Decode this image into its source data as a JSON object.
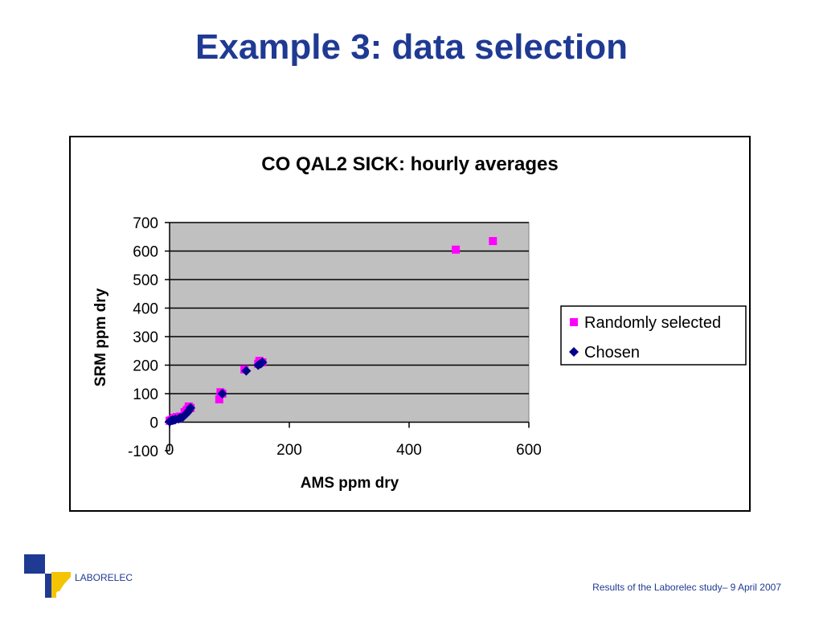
{
  "slide": {
    "title": "Example 3: data selection",
    "logo_text": "LABORELEC",
    "footer": "Results of the Laborelec study– 9 April 2007"
  },
  "chart_data": {
    "type": "scatter",
    "title": "CO QAL2 SICK: hourly averages",
    "xlabel": "AMS ppm dry",
    "ylabel": "SRM  ppm dry",
    "xlim": [
      0,
      600
    ],
    "ylim": [
      -100,
      700
    ],
    "xticks": [
      0,
      200,
      400,
      600
    ],
    "yticks": [
      -100,
      0,
      100,
      200,
      300,
      400,
      500,
      600,
      700
    ],
    "grid": "horizontal",
    "plot_background": "#c0c0c0",
    "legend_position": "right",
    "series": [
      {
        "name": "Randomly selected",
        "marker": "square",
        "color": "#ff00ff",
        "points": [
          [
            0,
            5
          ],
          [
            3,
            8
          ],
          [
            6,
            10
          ],
          [
            8,
            15
          ],
          [
            10,
            12
          ],
          [
            12,
            18
          ],
          [
            15,
            15
          ],
          [
            18,
            20
          ],
          [
            25,
            35
          ],
          [
            28,
            40
          ],
          [
            30,
            45
          ],
          [
            32,
            55
          ],
          [
            35,
            50
          ],
          [
            83,
            80
          ],
          [
            85,
            105
          ],
          [
            88,
            100
          ],
          [
            125,
            185
          ],
          [
            148,
            205
          ],
          [
            150,
            215
          ],
          [
            155,
            210
          ],
          [
            478,
            605
          ],
          [
            540,
            635
          ]
        ]
      },
      {
        "name": "Chosen",
        "marker": "diamond",
        "color": "#00008b",
        "points": [
          [
            0,
            2
          ],
          [
            2,
            5
          ],
          [
            5,
            7
          ],
          [
            8,
            8
          ],
          [
            10,
            10
          ],
          [
            15,
            12
          ],
          [
            18,
            15
          ],
          [
            22,
            18
          ],
          [
            28,
            30
          ],
          [
            30,
            35
          ],
          [
            32,
            40
          ],
          [
            35,
            50
          ],
          [
            88,
            100
          ],
          [
            128,
            180
          ],
          [
            148,
            200
          ],
          [
            152,
            205
          ],
          [
            155,
            210
          ]
        ]
      }
    ]
  }
}
